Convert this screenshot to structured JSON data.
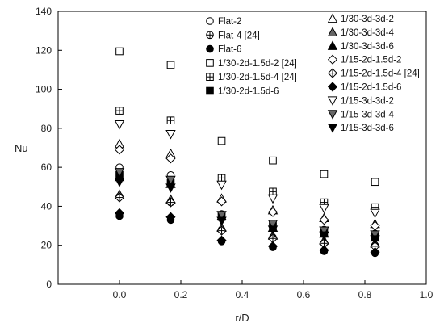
{
  "chart_data": {
    "type": "scatter",
    "xlabel": "r/D",
    "ylabel": "Nu",
    "xlim": [
      -0.2,
      1.0
    ],
    "ylim": [
      0,
      140
    ],
    "xticks": [
      "0.0",
      "0.2",
      "0.4",
      "0.6",
      "0.8",
      "1.0"
    ],
    "xtick_values": [
      0.0,
      0.2,
      0.4,
      0.6,
      0.8,
      1.0
    ],
    "yticks": [
      "0",
      "20",
      "40",
      "60",
      "80",
      "100",
      "120",
      "140"
    ],
    "ytick_values": [
      0,
      20,
      40,
      60,
      80,
      100,
      120,
      140
    ],
    "grid": false,
    "legend_placement": "top-right, two columns",
    "x": [
      0.0,
      0.167,
      0.333,
      0.5,
      0.667,
      0.833
    ],
    "series": [
      {
        "name": "Flat-2",
        "marker": "circle-open",
        "values": [
          60,
          56,
          36,
          31,
          28,
          26
        ]
      },
      {
        "name": "Flat-4 [24]",
        "marker": "circle-crosshair",
        "values": [
          45,
          42,
          28,
          24,
          21,
          20
        ]
      },
      {
        "name": "Flat-6",
        "marker": "circle-filled",
        "values": [
          35,
          33,
          22,
          19,
          17,
          16
        ]
      },
      {
        "name": "1/30-2d-1.5d-2 [24]",
        "marker": "square-open",
        "values": [
          119.5,
          112.5,
          73.5,
          63.5,
          56.5,
          52.5
        ]
      },
      {
        "name": "1/30-2d-1.5d-4 [24]",
        "marker": "square-crosshair",
        "values": [
          89,
          84,
          54.5,
          47.5,
          42,
          39.5
        ]
      },
      {
        "name": "1/30-2d-1.5d-6",
        "marker": "square-filled",
        "values": [
          56,
          52,
          34.5,
          30,
          26.5,
          25
        ]
      },
      {
        "name": "1/30-3d-3d-2",
        "marker": "triangle-up-open",
        "values": [
          72,
          67,
          44,
          38,
          34,
          31
        ]
      },
      {
        "name": "1/30-3d-3d-4",
        "marker": "triangle-up-gray",
        "values": [
          46,
          43.5,
          29,
          25,
          22.5,
          21
        ]
      },
      {
        "name": "1/30-3d-3d-6",
        "marker": "triangle-up-filled",
        "values": [
          55,
          51.5,
          35,
          29,
          26,
          24
        ]
      },
      {
        "name": "1/15-2d-1.5d-2",
        "marker": "diamond-open",
        "values": [
          69,
          64.5,
          42.5,
          37,
          33,
          30
        ]
      },
      {
        "name": "1/15-2d-1.5d-4 [24]",
        "marker": "diamond-crosshair",
        "values": [
          44.5,
          42,
          27.5,
          23.5,
          21,
          19.5
        ]
      },
      {
        "name": "1/15-2d-1.5d-6",
        "marker": "diamond-filled",
        "values": [
          36.5,
          34.5,
          22.5,
          19.5,
          17.5,
          16.5
        ]
      },
      {
        "name": "1/15-3d-3d-2",
        "marker": "triangle-down-open",
        "values": [
          82,
          77,
          51,
          44,
          39,
          36.5
        ]
      },
      {
        "name": "1/15-3d-3d-4",
        "marker": "triangle-down-gray",
        "values": [
          57.5,
          53.5,
          35.5,
          31,
          27.5,
          25.5
        ]
      },
      {
        "name": "1/15-3d-3d-6",
        "marker": "triangle-down-filled",
        "values": [
          52.5,
          49.5,
          32.5,
          28,
          25,
          23
        ]
      }
    ]
  }
}
